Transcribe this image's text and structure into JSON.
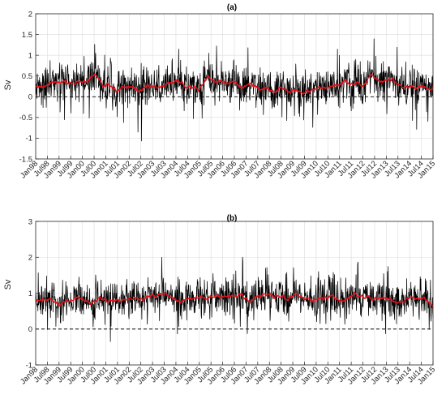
{
  "colors": {
    "raw_series": "#000000",
    "smoothed_series": "#e8101b",
    "grid": "#dcdcdc",
    "axes": "#262626"
  },
  "x_tick_labels": [
    "Jan98",
    "Jul98",
    "Jan99",
    "Jul99",
    "Jan00",
    "Jul00",
    "Jan01",
    "Jul01",
    "Jan02",
    "Jul02",
    "Jan03",
    "Jul03",
    "Jan04",
    "Jul04",
    "Jan05",
    "Jul05",
    "Jan06",
    "Jul06",
    "Jan07",
    "Jul07",
    "Jan08",
    "Jul08",
    "Jan09",
    "Jul09",
    "Jan10",
    "Jul10",
    "Jan11",
    "Jul11",
    "Jan12",
    "Jul12",
    "Jan13",
    "Jul13",
    "Jan14",
    "Jul14",
    "Jan15"
  ],
  "chart_data": [
    {
      "type": "line",
      "title": "(a)",
      "ylabel": "Sv",
      "xlabel": "",
      "xlim": [
        "1998-01",
        "2015-01"
      ],
      "ylim": [
        -1.5,
        2
      ],
      "y_ticks": [
        "-1.5",
        "-1",
        "-0.5",
        "0",
        "0.5",
        "1",
        "1.5",
        "2"
      ],
      "grid": true,
      "reference_line": 0,
      "series_style": [
        "raw: black, high-frequency",
        "smoothed: red"
      ],
      "series": [
        {
          "x": [
            "1998-01",
            "1999-01",
            "2000-01",
            "2001-01",
            "2002-01",
            "2003-01",
            "2004-01",
            "2005-01",
            "2006-01",
            "2007-01",
            "2008-01",
            "2009-01",
            "2010-01",
            "2011-01",
            "2012-01",
            "2013-01",
            "2014-01",
            "2015-01"
          ],
          "values": [
            0.3,
            0.4,
            0.45,
            0.3,
            0.25,
            0.3,
            0.3,
            0.25,
            0.35,
            0.3,
            0.2,
            0.2,
            0.2,
            0.25,
            0.35,
            0.35,
            0.3,
            0.25
          ]
        },
        {
          "x": [
            "1998-01",
            "1999-01",
            "2000-01",
            "2001-01",
            "2002-01",
            "2003-01",
            "2004-01",
            "2005-01",
            "2006-01",
            "2007-01",
            "2008-01",
            "2009-01",
            "2010-01",
            "2011-01",
            "2012-01",
            "2013-01",
            "2014-01",
            "2015-01"
          ],
          "values": [
            0.3,
            0.4,
            0.45,
            0.3,
            0.25,
            0.3,
            0.3,
            0.25,
            0.35,
            0.3,
            0.2,
            0.2,
            0.2,
            0.25,
            0.35,
            0.35,
            0.3,
            0.25
          ]
        }
      ]
    },
    {
      "type": "line",
      "title": "(b)",
      "ylabel": "Sv",
      "xlabel": "",
      "xlim": [
        "1998-01",
        "2015-01"
      ],
      "ylim": [
        -1,
        3
      ],
      "y_ticks": [
        "-1",
        "0",
        "1",
        "2",
        "3"
      ],
      "grid": true,
      "reference_line": 0,
      "series_style": [
        "raw: black, high-frequency",
        "smoothed: red"
      ],
      "series": [
        {
          "x": [
            "1998-01",
            "1999-01",
            "2000-01",
            "2001-01",
            "2002-01",
            "2003-01",
            "2004-01",
            "2005-01",
            "2006-01",
            "2007-01",
            "2008-01",
            "2009-01",
            "2010-01",
            "2011-01",
            "2012-01",
            "2013-01",
            "2014-01",
            "2015-01"
          ],
          "values": [
            0.85,
            0.8,
            0.8,
            0.85,
            0.85,
            0.9,
            0.85,
            0.85,
            0.85,
            0.85,
            0.95,
            0.85,
            0.85,
            0.9,
            0.9,
            0.85,
            0.85,
            0.8
          ]
        },
        {
          "x": [
            "1998-01",
            "1999-01",
            "2000-01",
            "2001-01",
            "2002-01",
            "2003-01",
            "2004-01",
            "2005-01",
            "2006-01",
            "2007-01",
            "2008-01",
            "2009-01",
            "2010-01",
            "2011-01",
            "2012-01",
            "2013-01",
            "2014-01",
            "2015-01"
          ],
          "values": [
            0.85,
            0.8,
            0.8,
            0.85,
            0.85,
            0.9,
            0.85,
            0.85,
            0.85,
            0.85,
            0.95,
            0.85,
            0.85,
            0.9,
            0.9,
            0.85,
            0.85,
            0.8
          ]
        }
      ]
    }
  ]
}
